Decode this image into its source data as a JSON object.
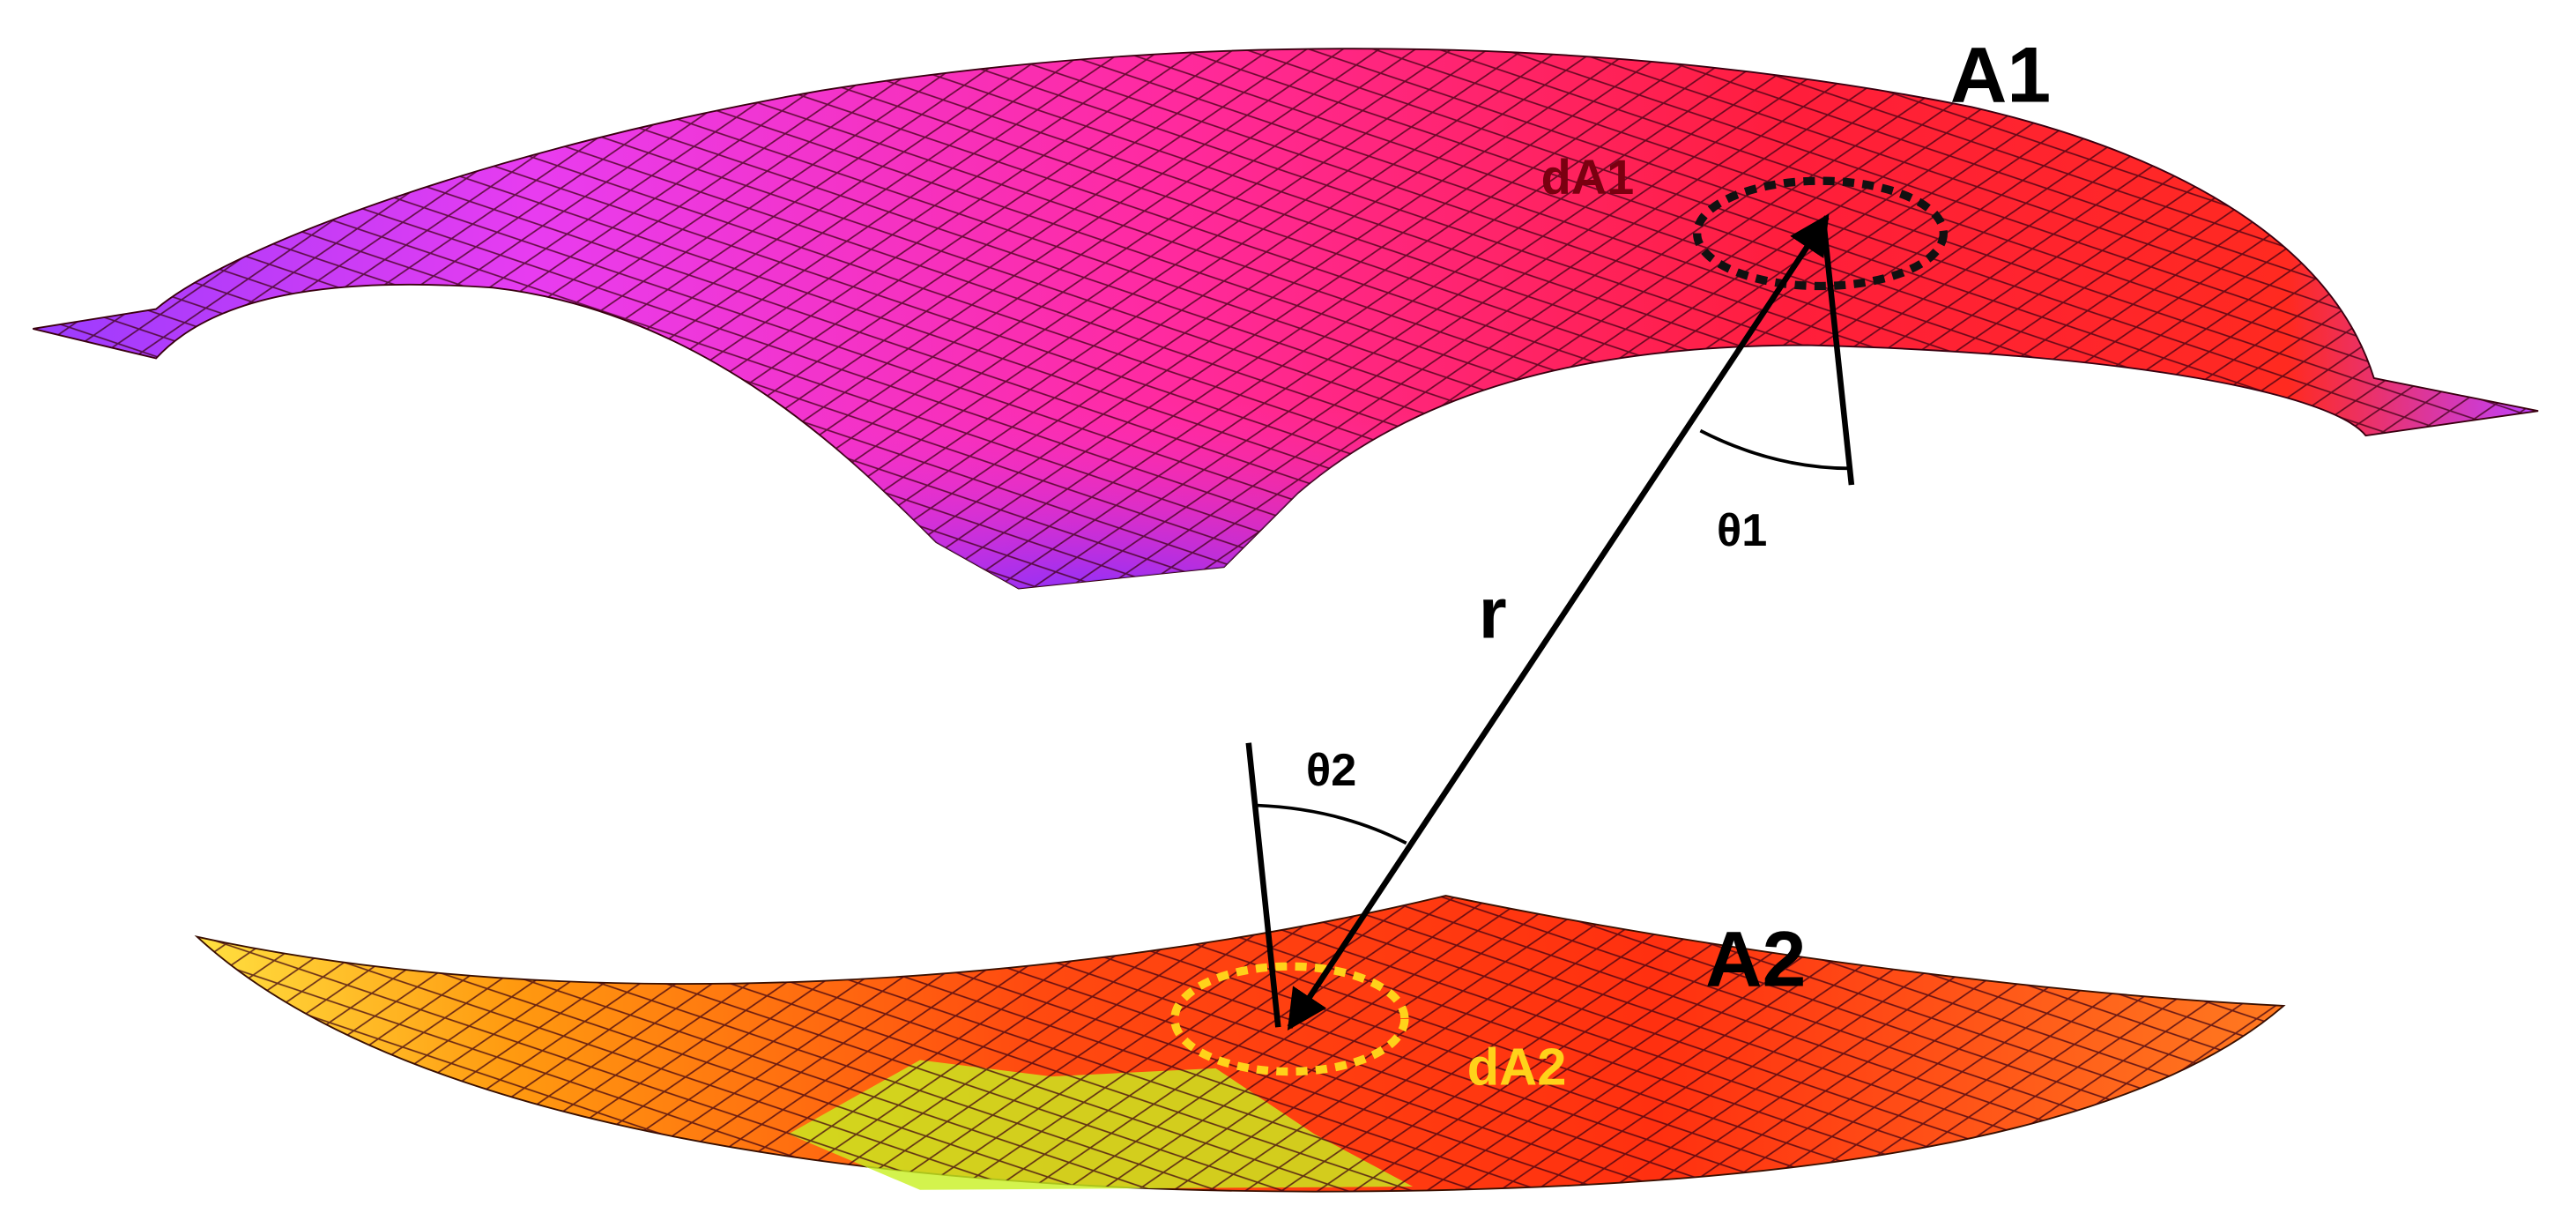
{
  "surfaces": [
    {
      "label": "A1",
      "element": "dA1",
      "angle": "θ1"
    },
    {
      "label": "A2",
      "element": "dA2",
      "angle": "θ2"
    }
  ],
  "distance": "r"
}
